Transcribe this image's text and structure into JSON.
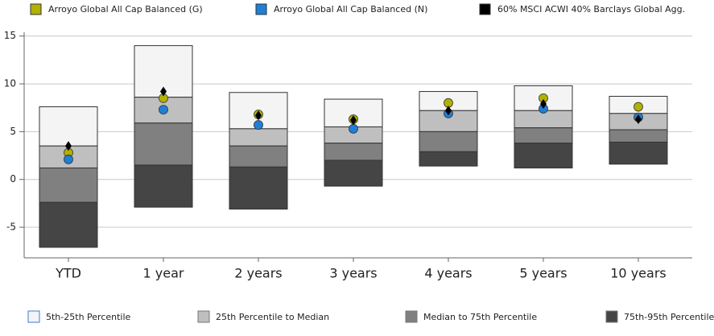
{
  "chart_data": {
    "type": "floating-box",
    "categories": [
      "YTD",
      "1 year",
      "2 years",
      "3 years",
      "4 years",
      "5 years",
      "10 years"
    ],
    "levels": [
      [
        7.6,
        14.0,
        9.1,
        8.4,
        9.2,
        9.8,
        8.7
      ],
      [
        3.5,
        8.6,
        5.3,
        5.5,
        7.2,
        7.2,
        6.9
      ],
      [
        1.2,
        5.9,
        3.5,
        3.8,
        5.0,
        5.4,
        5.2
      ],
      [
        -2.4,
        1.5,
        1.3,
        2.0,
        2.9,
        3.8,
        3.9
      ],
      [
        -7.1,
        -2.9,
        -3.1,
        -0.7,
        1.4,
        1.2,
        1.6
      ]
    ],
    "bands": [
      {
        "name": "5th-25th Percentile",
        "color": "#f4f4f4"
      },
      {
        "name": "25th Percentile to Median",
        "color": "#bfbfbf"
      },
      {
        "name": "Median to 75th Percentile",
        "color": "#808080"
      },
      {
        "name": "75th-95th Percentile",
        "color": "#454545"
      }
    ],
    "series": [
      {
        "name": "Arroyo Global All Cap Balanced (G)",
        "color": "#b3b000",
        "marker": "circle",
        "values": [
          2.8,
          8.5,
          6.8,
          6.3,
          8.0,
          8.5,
          7.6
        ]
      },
      {
        "name": "Arroyo Global All Cap Balanced (N)",
        "color": "#1f7fd6",
        "marker": "circle",
        "values": [
          2.1,
          7.3,
          5.7,
          5.3,
          6.9,
          7.4,
          6.5
        ]
      },
      {
        "name": "60% MSCI ACWI 40% Barclays Global Agg.",
        "color": "#000000",
        "marker": "diamond",
        "values": [
          3.5,
          9.2,
          6.7,
          6.2,
          7.2,
          7.9,
          6.3
        ]
      }
    ],
    "ylim": [
      -8.2,
      15.4
    ],
    "yticks": [
      -5,
      0,
      5,
      10,
      15
    ],
    "grid": true
  }
}
